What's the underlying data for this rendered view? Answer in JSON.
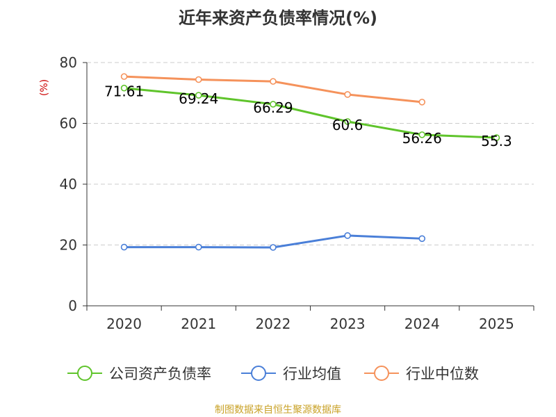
{
  "title": "近年来资产负债率情况(%)",
  "footer": "制图数据来自恒生聚源数据库",
  "colors": {
    "company": "#5fc42b",
    "avg": "#4a7fd8",
    "median": "#f5925b",
    "axis": "#333333",
    "grid": "#cccccc",
    "unit": "#cc0000",
    "footer": "#c9a227"
  },
  "chart_data": {
    "type": "line",
    "title": "近年来资产负债率情况(%)",
    "ylabel": "(%)",
    "xlabel": "",
    "ylim": [
      0,
      80
    ],
    "y_ticks": [
      0,
      20,
      40,
      60,
      80
    ],
    "categories": [
      "2020",
      "2021",
      "2022",
      "2023",
      "2024",
      "2025"
    ],
    "grid": true,
    "legend_position": "bottom",
    "series": [
      {
        "name": "公司资产负债率",
        "color": "#5fc42b",
        "values": [
          71.61,
          69.24,
          66.29,
          60.6,
          56.26,
          55.3
        ],
        "labels": [
          "71.61",
          "69.24",
          "66.29",
          "60.6",
          "56.26",
          "55.3"
        ]
      },
      {
        "name": "行业均值",
        "color": "#4a7fd8",
        "values": [
          19.3,
          19.3,
          19.2,
          23.1,
          22.1,
          null
        ]
      },
      {
        "name": "行业中位数",
        "color": "#f5925b",
        "values": [
          75.4,
          74.4,
          73.8,
          69.5,
          67.0,
          null
        ]
      }
    ]
  }
}
